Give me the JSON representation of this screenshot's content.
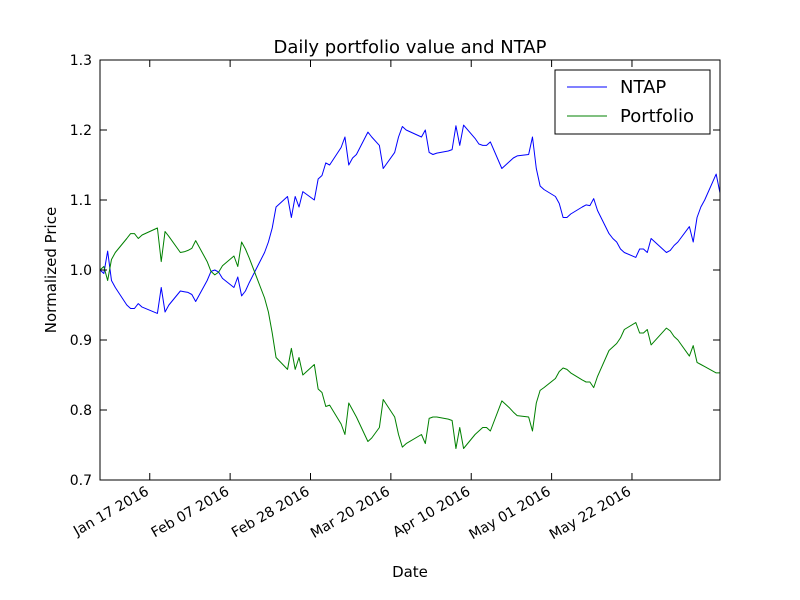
{
  "chart_data": {
    "type": "line",
    "title": "Daily portfolio value and NTAP",
    "xlabel": "Date",
    "ylabel": "Normalized Price",
    "ylim": [
      0.7,
      1.3
    ],
    "xlim": [
      "2016-01-04",
      "2016-06-14"
    ],
    "yticks": [
      "0.7",
      "0.8",
      "0.9",
      "1.0",
      "1.1",
      "1.2",
      "1.3"
    ],
    "xticks": [
      {
        "date": "2016-01-17",
        "label": "Jan 17 2016"
      },
      {
        "date": "2016-02-07",
        "label": "Feb 07 2016"
      },
      {
        "date": "2016-02-28",
        "label": "Feb 28 2016"
      },
      {
        "date": "2016-03-20",
        "label": "Mar 20 2016"
      },
      {
        "date": "2016-04-10",
        "label": "Apr 10 2016"
      },
      {
        "date": "2016-05-01",
        "label": "May 01 2016"
      },
      {
        "date": "2016-05-22",
        "label": "May 22 2016"
      }
    ],
    "grid": false,
    "legend": {
      "position": "top-right"
    },
    "series": [
      {
        "name": "NTAP",
        "color": "#0000ff",
        "points": [
          [
            "2016-01-04",
            1.0
          ],
          [
            "2016-01-05",
            0.995
          ],
          [
            "2016-01-06",
            1.027
          ],
          [
            "2016-01-07",
            0.985
          ],
          [
            "2016-01-08",
            0.975
          ],
          [
            "2016-01-11",
            0.95
          ],
          [
            "2016-01-12",
            0.945
          ],
          [
            "2016-01-13",
            0.945
          ],
          [
            "2016-01-14",
            0.952
          ],
          [
            "2016-01-15",
            0.947
          ],
          [
            "2016-01-19",
            0.938
          ],
          [
            "2016-01-20",
            0.975
          ],
          [
            "2016-01-21",
            0.94
          ],
          [
            "2016-01-22",
            0.95
          ],
          [
            "2016-01-25",
            0.97
          ],
          [
            "2016-01-26",
            0.969
          ],
          [
            "2016-01-27",
            0.968
          ],
          [
            "2016-01-28",
            0.965
          ],
          [
            "2016-01-29",
            0.955
          ],
          [
            "2016-02-01",
            0.985
          ],
          [
            "2016-02-02",
            0.998
          ],
          [
            "2016-02-03",
            1.0
          ],
          [
            "2016-02-04",
            0.997
          ],
          [
            "2016-02-05",
            0.988
          ],
          [
            "2016-02-08",
            0.975
          ],
          [
            "2016-02-09",
            0.99
          ],
          [
            "2016-02-10",
            0.963
          ],
          [
            "2016-02-11",
            0.97
          ],
          [
            "2016-02-12",
            0.982
          ],
          [
            "2016-02-16",
            1.025
          ],
          [
            "2016-02-17",
            1.04
          ],
          [
            "2016-02-18",
            1.06
          ],
          [
            "2016-02-19",
            1.09
          ],
          [
            "2016-02-22",
            1.105
          ],
          [
            "2016-02-23",
            1.075
          ],
          [
            "2016-02-24",
            1.105
          ],
          [
            "2016-02-25",
            1.09
          ],
          [
            "2016-02-26",
            1.112
          ],
          [
            "2016-02-29",
            1.1
          ],
          [
            "2016-03-01",
            1.13
          ],
          [
            "2016-03-02",
            1.135
          ],
          [
            "2016-03-03",
            1.153
          ],
          [
            "2016-03-04",
            1.15
          ],
          [
            "2016-03-07",
            1.175
          ],
          [
            "2016-03-08",
            1.19
          ],
          [
            "2016-03-09",
            1.15
          ],
          [
            "2016-03-10",
            1.16
          ],
          [
            "2016-03-11",
            1.165
          ],
          [
            "2016-03-14",
            1.197
          ],
          [
            "2016-03-15",
            1.19
          ],
          [
            "2016-03-17",
            1.178
          ],
          [
            "2016-03-18",
            1.145
          ],
          [
            "2016-03-21",
            1.168
          ],
          [
            "2016-03-22",
            1.19
          ],
          [
            "2016-03-23",
            1.205
          ],
          [
            "2016-03-24",
            1.2
          ],
          [
            "2016-03-28",
            1.19
          ],
          [
            "2016-03-29",
            1.2
          ],
          [
            "2016-03-30",
            1.168
          ],
          [
            "2016-03-31",
            1.165
          ],
          [
            "2016-04-01",
            1.167
          ],
          [
            "2016-04-04",
            1.17
          ],
          [
            "2016-04-05",
            1.172
          ],
          [
            "2016-04-06",
            1.206
          ],
          [
            "2016-04-07",
            1.178
          ],
          [
            "2016-04-08",
            1.207
          ],
          [
            "2016-04-11",
            1.188
          ],
          [
            "2016-04-12",
            1.18
          ],
          [
            "2016-04-13",
            1.178
          ],
          [
            "2016-04-14",
            1.178
          ],
          [
            "2016-04-15",
            1.183
          ],
          [
            "2016-04-18",
            1.145
          ],
          [
            "2016-04-19",
            1.15
          ],
          [
            "2016-04-20",
            1.155
          ],
          [
            "2016-04-21",
            1.16
          ],
          [
            "2016-04-22",
            1.163
          ],
          [
            "2016-04-25",
            1.165
          ],
          [
            "2016-04-26",
            1.19
          ],
          [
            "2016-04-27",
            1.145
          ],
          [
            "2016-04-28",
            1.12
          ],
          [
            "2016-04-29",
            1.115
          ],
          [
            "2016-05-02",
            1.105
          ],
          [
            "2016-05-03",
            1.095
          ],
          [
            "2016-05-04",
            1.075
          ],
          [
            "2016-05-05",
            1.075
          ],
          [
            "2016-05-06",
            1.08
          ],
          [
            "2016-05-09",
            1.09
          ],
          [
            "2016-05-10",
            1.093
          ],
          [
            "2016-05-11",
            1.092
          ],
          [
            "2016-05-12",
            1.102
          ],
          [
            "2016-05-13",
            1.085
          ],
          [
            "2016-05-16",
            1.052
          ],
          [
            "2016-05-17",
            1.045
          ],
          [
            "2016-05-18",
            1.04
          ],
          [
            "2016-05-19",
            1.03
          ],
          [
            "2016-05-20",
            1.025
          ],
          [
            "2016-05-23",
            1.018
          ],
          [
            "2016-05-24",
            1.03
          ],
          [
            "2016-05-25",
            1.03
          ],
          [
            "2016-05-26",
            1.025
          ],
          [
            "2016-05-27",
            1.045
          ],
          [
            "2016-05-31",
            1.025
          ],
          [
            "2016-06-01",
            1.028
          ],
          [
            "2016-06-02",
            1.035
          ],
          [
            "2016-06-03",
            1.04
          ],
          [
            "2016-06-06",
            1.062
          ],
          [
            "2016-06-07",
            1.04
          ],
          [
            "2016-06-08",
            1.075
          ],
          [
            "2016-06-09",
            1.09
          ],
          [
            "2016-06-10",
            1.1
          ],
          [
            "2016-06-13",
            1.137
          ],
          [
            "2016-06-14",
            1.11
          ],
          [
            "2016-06-15",
            1.128
          ],
          [
            "2016-06-20",
            1.137
          ],
          [
            "2016-06-21",
            1.115
          ]
        ]
      },
      {
        "name": "Portfolio",
        "color": "#008000",
        "points": [
          [
            "2016-01-04",
            1.0
          ],
          [
            "2016-01-05",
            1.005
          ],
          [
            "2016-01-06",
            0.985
          ],
          [
            "2016-01-07",
            1.015
          ],
          [
            "2016-01-08",
            1.025
          ],
          [
            "2016-01-11",
            1.045
          ],
          [
            "2016-01-12",
            1.052
          ],
          [
            "2016-01-13",
            1.052
          ],
          [
            "2016-01-14",
            1.045
          ],
          [
            "2016-01-15",
            1.05
          ],
          [
            "2016-01-19",
            1.06
          ],
          [
            "2016-01-20",
            1.012
          ],
          [
            "2016-01-21",
            1.055
          ],
          [
            "2016-01-22",
            1.048
          ],
          [
            "2016-01-25",
            1.025
          ],
          [
            "2016-01-26",
            1.026
          ],
          [
            "2016-01-27",
            1.028
          ],
          [
            "2016-01-28",
            1.031
          ],
          [
            "2016-01-29",
            1.042
          ],
          [
            "2016-02-01",
            1.012
          ],
          [
            "2016-02-02",
            0.998
          ],
          [
            "2016-02-03",
            0.993
          ],
          [
            "2016-02-04",
            0.997
          ],
          [
            "2016-02-05",
            1.006
          ],
          [
            "2016-02-08",
            1.02
          ],
          [
            "2016-02-09",
            1.005
          ],
          [
            "2016-02-10",
            1.04
          ],
          [
            "2016-02-11",
            1.03
          ],
          [
            "2016-02-12",
            1.017
          ],
          [
            "2016-02-16",
            0.96
          ],
          [
            "2016-02-17",
            0.94
          ],
          [
            "2016-02-18",
            0.91
          ],
          [
            "2016-02-19",
            0.875
          ],
          [
            "2016-02-22",
            0.858
          ],
          [
            "2016-02-23",
            0.888
          ],
          [
            "2016-02-24",
            0.858
          ],
          [
            "2016-02-25",
            0.875
          ],
          [
            "2016-02-26",
            0.85
          ],
          [
            "2016-02-29",
            0.865
          ],
          [
            "2016-03-01",
            0.83
          ],
          [
            "2016-03-02",
            0.825
          ],
          [
            "2016-03-03",
            0.805
          ],
          [
            "2016-03-04",
            0.807
          ],
          [
            "2016-03-07",
            0.78
          ],
          [
            "2016-03-08",
            0.765
          ],
          [
            "2016-03-09",
            0.81
          ],
          [
            "2016-03-10",
            0.8
          ],
          [
            "2016-03-11",
            0.79
          ],
          [
            "2016-03-14",
            0.755
          ],
          [
            "2016-03-15",
            0.76
          ],
          [
            "2016-03-17",
            0.775
          ],
          [
            "2016-03-18",
            0.815
          ],
          [
            "2016-03-21",
            0.79
          ],
          [
            "2016-03-22",
            0.765
          ],
          [
            "2016-03-23",
            0.747
          ],
          [
            "2016-03-24",
            0.752
          ],
          [
            "2016-03-28",
            0.765
          ],
          [
            "2016-03-29",
            0.752
          ],
          [
            "2016-03-30",
            0.788
          ],
          [
            "2016-03-31",
            0.79
          ],
          [
            "2016-04-01",
            0.79
          ],
          [
            "2016-04-04",
            0.787
          ],
          [
            "2016-04-05",
            0.785
          ],
          [
            "2016-04-06",
            0.745
          ],
          [
            "2016-04-07",
            0.775
          ],
          [
            "2016-04-08",
            0.745
          ],
          [
            "2016-04-11",
            0.765
          ],
          [
            "2016-04-12",
            0.77
          ],
          [
            "2016-04-13",
            0.775
          ],
          [
            "2016-04-14",
            0.775
          ],
          [
            "2016-04-15",
            0.77
          ],
          [
            "2016-04-18",
            0.813
          ],
          [
            "2016-04-19",
            0.808
          ],
          [
            "2016-04-20",
            0.803
          ],
          [
            "2016-04-21",
            0.797
          ],
          [
            "2016-04-22",
            0.792
          ],
          [
            "2016-04-25",
            0.79
          ],
          [
            "2016-04-26",
            0.77
          ],
          [
            "2016-04-27",
            0.81
          ],
          [
            "2016-04-28",
            0.828
          ],
          [
            "2016-04-29",
            0.832
          ],
          [
            "2016-05-02",
            0.845
          ],
          [
            "2016-05-03",
            0.855
          ],
          [
            "2016-05-04",
            0.86
          ],
          [
            "2016-05-05",
            0.858
          ],
          [
            "2016-05-06",
            0.853
          ],
          [
            "2016-05-09",
            0.843
          ],
          [
            "2016-05-10",
            0.84
          ],
          [
            "2016-05-11",
            0.84
          ],
          [
            "2016-05-12",
            0.832
          ],
          [
            "2016-05-13",
            0.848
          ],
          [
            "2016-05-16",
            0.885
          ],
          [
            "2016-05-17",
            0.89
          ],
          [
            "2016-05-18",
            0.895
          ],
          [
            "2016-05-19",
            0.903
          ],
          [
            "2016-05-20",
            0.915
          ],
          [
            "2016-05-23",
            0.925
          ],
          [
            "2016-05-24",
            0.91
          ],
          [
            "2016-05-25",
            0.91
          ],
          [
            "2016-05-26",
            0.915
          ],
          [
            "2016-05-27",
            0.893
          ],
          [
            "2016-05-31",
            0.917
          ],
          [
            "2016-06-01",
            0.913
          ],
          [
            "2016-06-02",
            0.905
          ],
          [
            "2016-06-03",
            0.9
          ],
          [
            "2016-06-06",
            0.877
          ],
          [
            "2016-06-07",
            0.892
          ],
          [
            "2016-06-08",
            0.868
          ],
          [
            "2016-06-09",
            0.865
          ],
          [
            "2016-06-10",
            0.862
          ],
          [
            "2016-06-13",
            0.853
          ],
          [
            "2016-06-14",
            0.853
          ],
          [
            "2016-06-15",
            0.853
          ],
          [
            "2016-06-20",
            0.853
          ],
          [
            "2016-06-21",
            0.853
          ]
        ]
      }
    ]
  }
}
